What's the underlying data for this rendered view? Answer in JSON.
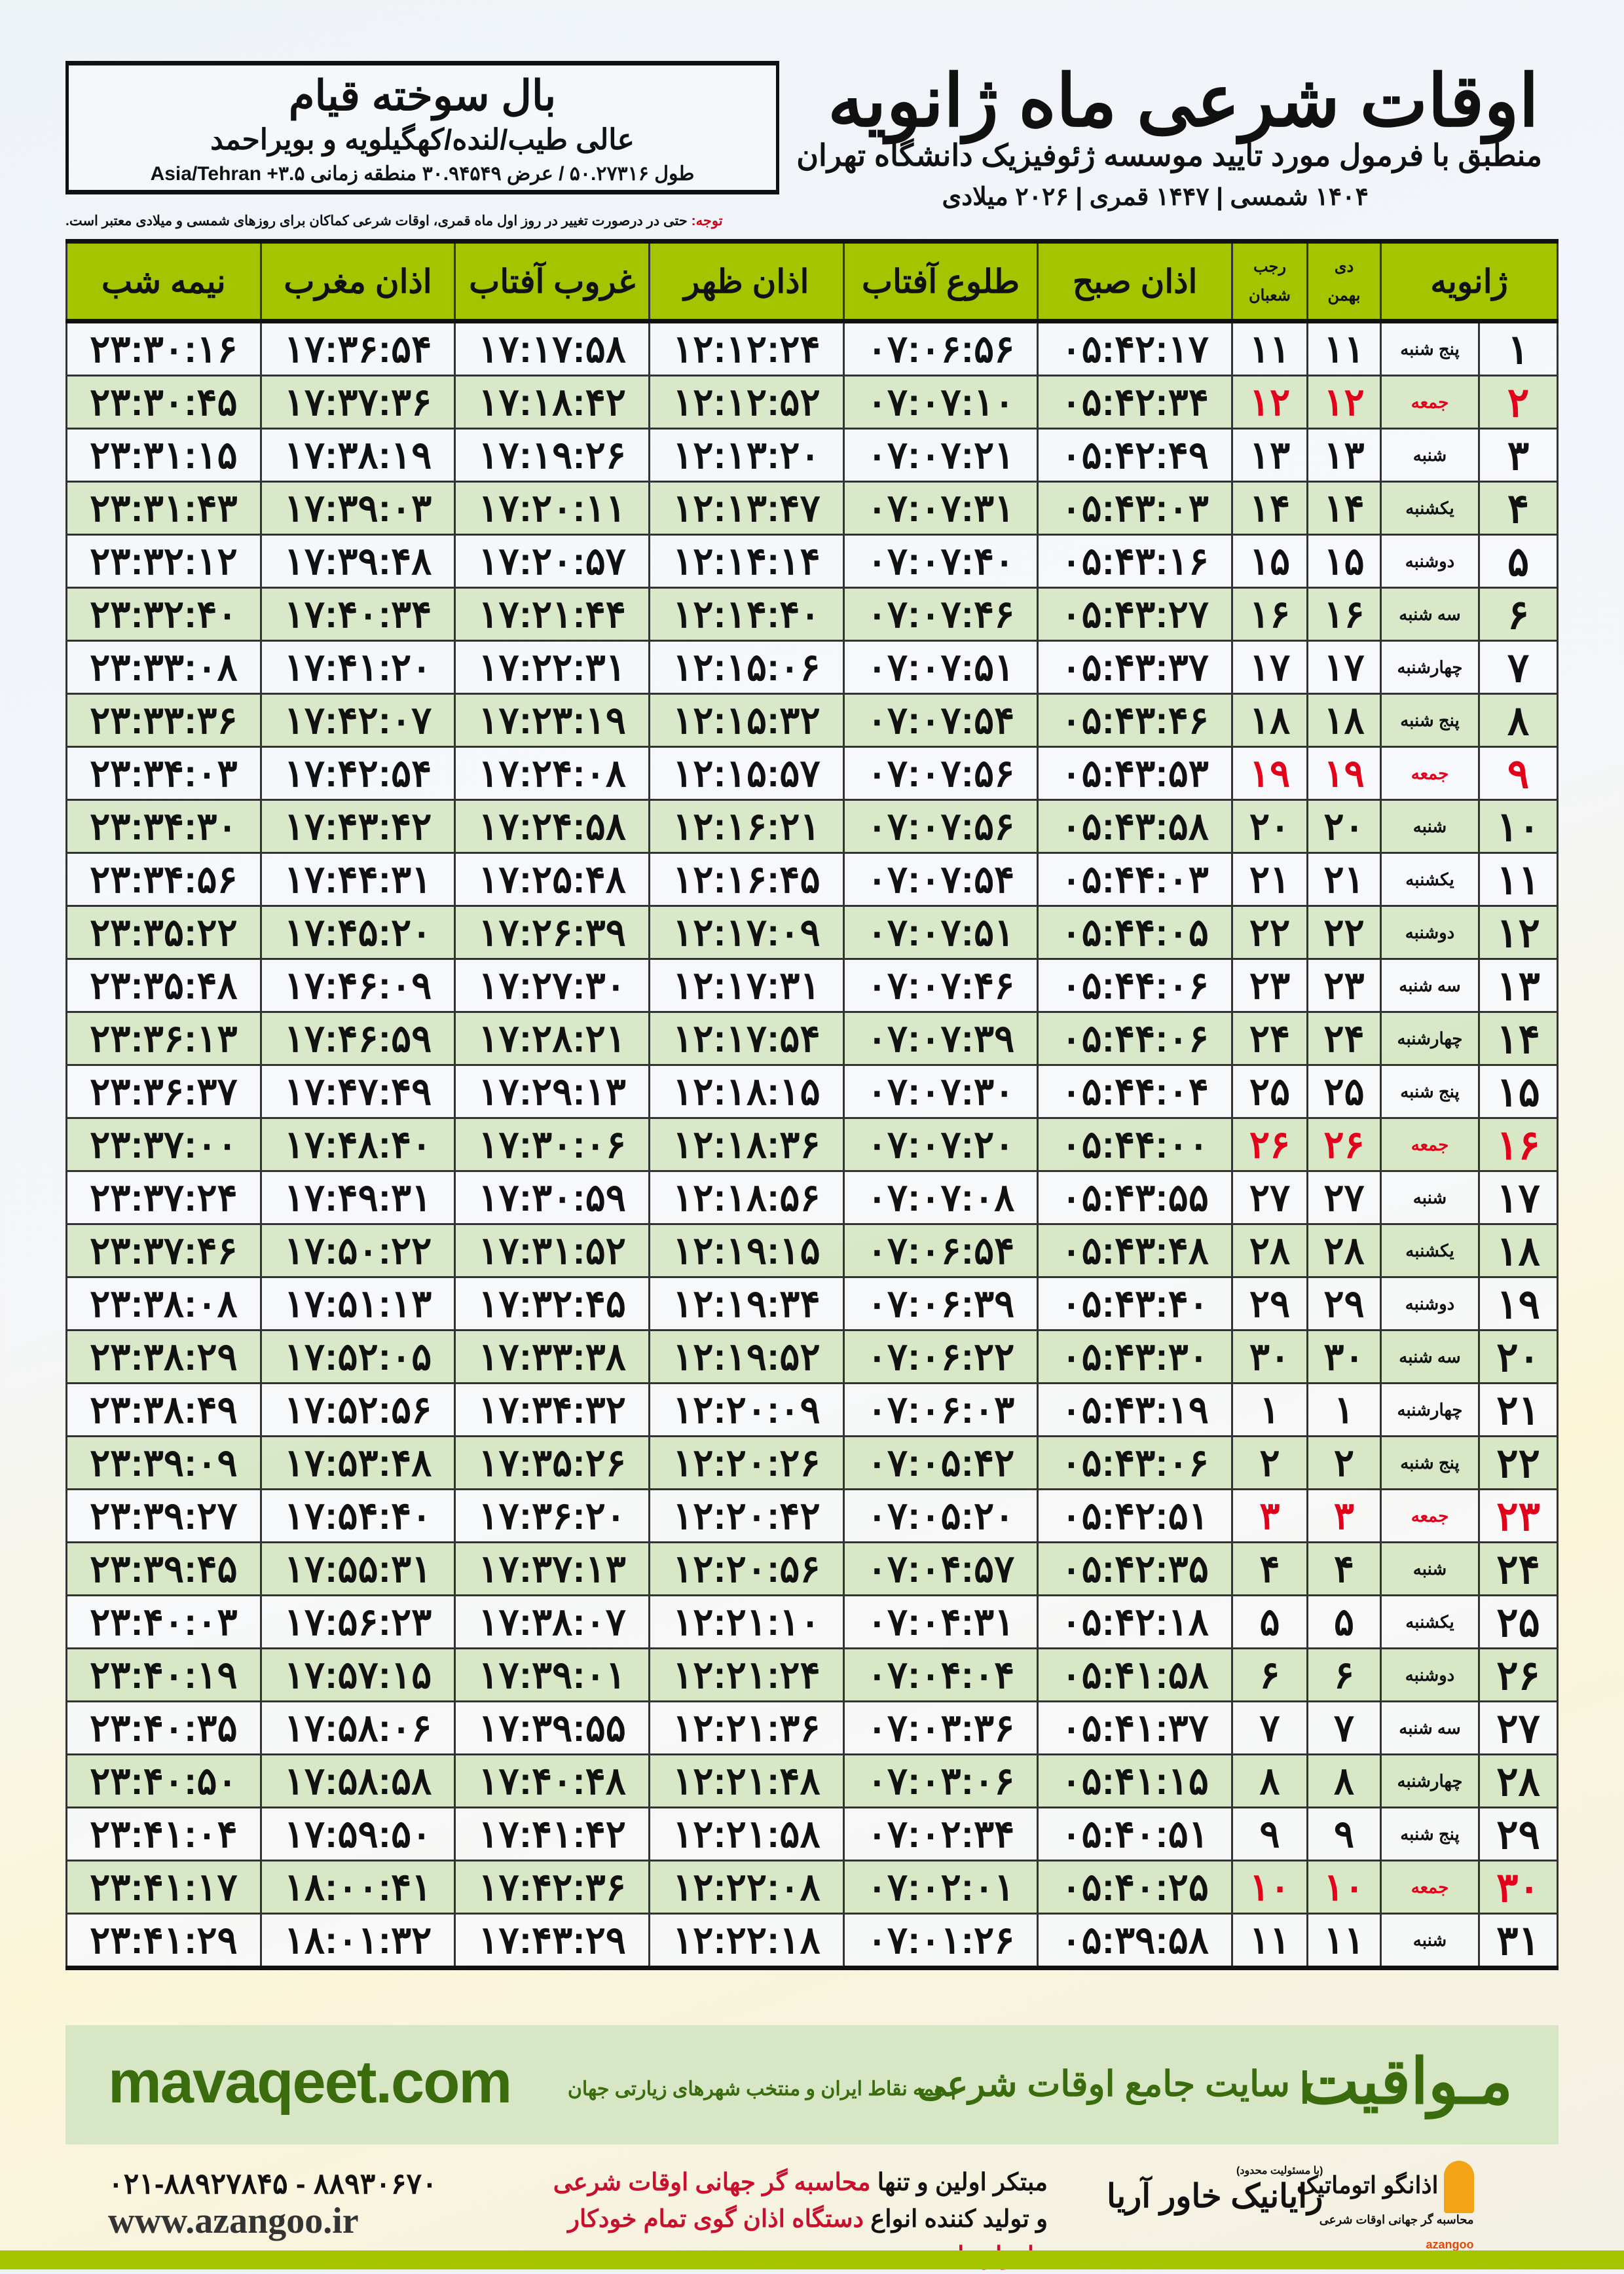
{
  "header": {
    "title": "اوقات شرعی ماه ژانویه",
    "subtitle": "منطبق با فرمول مورد تایید موسسه ژئوفیزیک دانشگاه تهران",
    "years": "۱۴۰۴ شمسی | ۱۴۴۷ قمری | ۲۰۲۶ میلادی"
  },
  "location": {
    "name": "بال سوخته قیام",
    "region": "عالی طیب/لنده/کهگیلویه و بویراحمد",
    "coords": "طول ۵۰.۲۷۳۱۶ / عرض ۳۰.۹۴۵۴۹ منطقه زمانی Asia/Tehran +۳.۵"
  },
  "note": {
    "label": "توجه:",
    "text": " حتی در درصورت تغییر در روز اول ماه قمری، اوقات شرعی کماکان برای روزهای شمسی و میلادی معتبر است."
  },
  "table": {
    "headers": {
      "month": "ژانویه",
      "shamsi_top": "دی",
      "shamsi_bottom": "بهمن",
      "qamari_top": "رجب",
      "qamari_bottom": "شعبان",
      "fajr": "اذان صبح",
      "sunrise": "طلوع آفتاب",
      "dhuhr": "اذان ظهر",
      "sunset": "غروب آفتاب",
      "maghrib": "اذان مغرب",
      "midnight": "نیمه شب"
    },
    "rows": [
      [
        "۱",
        "پنج شنبه",
        "۱۱",
        "۱۱",
        "۰۵:۴۲:۱۷",
        "۰۷:۰۶:۵۶",
        "۱۲:۱۲:۲۴",
        "۱۷:۱۷:۵۸",
        "۱۷:۳۶:۵۴",
        "۲۳:۳۰:۱۶"
      ],
      [
        "۲",
        "جمعه",
        "۱۲",
        "۱۲",
        "۰۵:۴۲:۳۴",
        "۰۷:۰۷:۱۰",
        "۱۲:۱۲:۵۲",
        "۱۷:۱۸:۴۲",
        "۱۷:۳۷:۳۶",
        "۲۳:۳۰:۴۵"
      ],
      [
        "۳",
        "شنبه",
        "۱۳",
        "۱۳",
        "۰۵:۴۲:۴۹",
        "۰۷:۰۷:۲۱",
        "۱۲:۱۳:۲۰",
        "۱۷:۱۹:۲۶",
        "۱۷:۳۸:۱۹",
        "۲۳:۳۱:۱۵"
      ],
      [
        "۴",
        "یکشنبه",
        "۱۴",
        "۱۴",
        "۰۵:۴۳:۰۳",
        "۰۷:۰۷:۳۱",
        "۱۲:۱۳:۴۷",
        "۱۷:۲۰:۱۱",
        "۱۷:۳۹:۰۳",
        "۲۳:۳۱:۴۳"
      ],
      [
        "۵",
        "دوشنبه",
        "۱۵",
        "۱۵",
        "۰۵:۴۳:۱۶",
        "۰۷:۰۷:۴۰",
        "۱۲:۱۴:۱۴",
        "۱۷:۲۰:۵۷",
        "۱۷:۳۹:۴۸",
        "۲۳:۳۲:۱۲"
      ],
      [
        "۶",
        "سه شنبه",
        "۱۶",
        "۱۶",
        "۰۵:۴۳:۲۷",
        "۰۷:۰۷:۴۶",
        "۱۲:۱۴:۴۰",
        "۱۷:۲۱:۴۴",
        "۱۷:۴۰:۳۴",
        "۲۳:۳۲:۴۰"
      ],
      [
        "۷",
        "چهارشنبه",
        "۱۷",
        "۱۷",
        "۰۵:۴۳:۳۷",
        "۰۷:۰۷:۵۱",
        "۱۲:۱۵:۰۶",
        "۱۷:۲۲:۳۱",
        "۱۷:۴۱:۲۰",
        "۲۳:۳۳:۰۸"
      ],
      [
        "۸",
        "پنج شنبه",
        "۱۸",
        "۱۸",
        "۰۵:۴۳:۴۶",
        "۰۷:۰۷:۵۴",
        "۱۲:۱۵:۳۲",
        "۱۷:۲۳:۱۹",
        "۱۷:۴۲:۰۷",
        "۲۳:۳۳:۳۶"
      ],
      [
        "۹",
        "جمعه",
        "۱۹",
        "۱۹",
        "۰۵:۴۳:۵۳",
        "۰۷:۰۷:۵۶",
        "۱۲:۱۵:۵۷",
        "۱۷:۲۴:۰۸",
        "۱۷:۴۲:۵۴",
        "۲۳:۳۴:۰۳"
      ],
      [
        "۱۰",
        "شنبه",
        "۲۰",
        "۲۰",
        "۰۵:۴۳:۵۸",
        "۰۷:۰۷:۵۶",
        "۱۲:۱۶:۲۱",
        "۱۷:۲۴:۵۸",
        "۱۷:۴۳:۴۲",
        "۲۳:۳۴:۳۰"
      ],
      [
        "۱۱",
        "یکشنبه",
        "۲۱",
        "۲۱",
        "۰۵:۴۴:۰۳",
        "۰۷:۰۷:۵۴",
        "۱۲:۱۶:۴۵",
        "۱۷:۲۵:۴۸",
        "۱۷:۴۴:۳۱",
        "۲۳:۳۴:۵۶"
      ],
      [
        "۱۲",
        "دوشنبه",
        "۲۲",
        "۲۲",
        "۰۵:۴۴:۰۵",
        "۰۷:۰۷:۵۱",
        "۱۲:۱۷:۰۹",
        "۱۷:۲۶:۳۹",
        "۱۷:۴۵:۲۰",
        "۲۳:۳۵:۲۲"
      ],
      [
        "۱۳",
        "سه شنبه",
        "۲۳",
        "۲۳",
        "۰۵:۴۴:۰۶",
        "۰۷:۰۷:۴۶",
        "۱۲:۱۷:۳۱",
        "۱۷:۲۷:۳۰",
        "۱۷:۴۶:۰۹",
        "۲۳:۳۵:۴۸"
      ],
      [
        "۱۴",
        "چهارشنبه",
        "۲۴",
        "۲۴",
        "۰۵:۴۴:۰۶",
        "۰۷:۰۷:۳۹",
        "۱۲:۱۷:۵۴",
        "۱۷:۲۸:۲۱",
        "۱۷:۴۶:۵۹",
        "۲۳:۳۶:۱۳"
      ],
      [
        "۱۵",
        "پنج شنبه",
        "۲۵",
        "۲۵",
        "۰۵:۴۴:۰۴",
        "۰۷:۰۷:۳۰",
        "۱۲:۱۸:۱۵",
        "۱۷:۲۹:۱۳",
        "۱۷:۴۷:۴۹",
        "۲۳:۳۶:۳۷"
      ],
      [
        "۱۶",
        "جمعه",
        "۲۶",
        "۲۶",
        "۰۵:۴۴:۰۰",
        "۰۷:۰۷:۲۰",
        "۱۲:۱۸:۳۶",
        "۱۷:۳۰:۰۶",
        "۱۷:۴۸:۴۰",
        "۲۳:۳۷:۰۰"
      ],
      [
        "۱۷",
        "شنبه",
        "۲۷",
        "۲۷",
        "۰۵:۴۳:۵۵",
        "۰۷:۰۷:۰۸",
        "۱۲:۱۸:۵۶",
        "۱۷:۳۰:۵۹",
        "۱۷:۴۹:۳۱",
        "۲۳:۳۷:۲۴"
      ],
      [
        "۱۸",
        "یکشنبه",
        "۲۸",
        "۲۸",
        "۰۵:۴۳:۴۸",
        "۰۷:۰۶:۵۴",
        "۱۲:۱۹:۱۵",
        "۱۷:۳۱:۵۲",
        "۱۷:۵۰:۲۲",
        "۲۳:۳۷:۴۶"
      ],
      [
        "۱۹",
        "دوشنبه",
        "۲۹",
        "۲۹",
        "۰۵:۴۳:۴۰",
        "۰۷:۰۶:۳۹",
        "۱۲:۱۹:۳۴",
        "۱۷:۳۲:۴۵",
        "۱۷:۵۱:۱۳",
        "۲۳:۳۸:۰۸"
      ],
      [
        "۲۰",
        "سه شنبه",
        "۳۰",
        "۳۰",
        "۰۵:۴۳:۳۰",
        "۰۷:۰۶:۲۲",
        "۱۲:۱۹:۵۲",
        "۱۷:۳۳:۳۸",
        "۱۷:۵۲:۰۵",
        "۲۳:۳۸:۲۹"
      ],
      [
        "۲۱",
        "چهارشنبه",
        "۱",
        "۱",
        "۰۵:۴۳:۱۹",
        "۰۷:۰۶:۰۳",
        "۱۲:۲۰:۰۹",
        "۱۷:۳۴:۳۲",
        "۱۷:۵۲:۵۶",
        "۲۳:۳۸:۴۹"
      ],
      [
        "۲۲",
        "پنج شنبه",
        "۲",
        "۲",
        "۰۵:۴۳:۰۶",
        "۰۷:۰۵:۴۲",
        "۱۲:۲۰:۲۶",
        "۱۷:۳۵:۲۶",
        "۱۷:۵۳:۴۸",
        "۲۳:۳۹:۰۹"
      ],
      [
        "۲۳",
        "جمعه",
        "۳",
        "۳",
        "۰۵:۴۲:۵۱",
        "۰۷:۰۵:۲۰",
        "۱۲:۲۰:۴۲",
        "۱۷:۳۶:۲۰",
        "۱۷:۵۴:۴۰",
        "۲۳:۳۹:۲۷"
      ],
      [
        "۲۴",
        "شنبه",
        "۴",
        "۴",
        "۰۵:۴۲:۳۵",
        "۰۷:۰۴:۵۷",
        "۱۲:۲۰:۵۶",
        "۱۷:۳۷:۱۳",
        "۱۷:۵۵:۳۱",
        "۲۳:۳۹:۴۵"
      ],
      [
        "۲۵",
        "یکشنبه",
        "۵",
        "۵",
        "۰۵:۴۲:۱۸",
        "۰۷:۰۴:۳۱",
        "۱۲:۲۱:۱۰",
        "۱۷:۳۸:۰۷",
        "۱۷:۵۶:۲۳",
        "۲۳:۴۰:۰۳"
      ],
      [
        "۲۶",
        "دوشنبه",
        "۶",
        "۶",
        "۰۵:۴۱:۵۸",
        "۰۷:۰۴:۰۴",
        "۱۲:۲۱:۲۴",
        "۱۷:۳۹:۰۱",
        "۱۷:۵۷:۱۵",
        "۲۳:۴۰:۱۹"
      ],
      [
        "۲۷",
        "سه شنبه",
        "۷",
        "۷",
        "۰۵:۴۱:۳۷",
        "۰۷:۰۳:۳۶",
        "۱۲:۲۱:۳۶",
        "۱۷:۳۹:۵۵",
        "۱۷:۵۸:۰۶",
        "۲۳:۴۰:۳۵"
      ],
      [
        "۲۸",
        "چهارشنبه",
        "۸",
        "۸",
        "۰۵:۴۱:۱۵",
        "۰۷:۰۳:۰۶",
        "۱۲:۲۱:۴۸",
        "۱۷:۴۰:۴۸",
        "۱۷:۵۸:۵۸",
        "۲۳:۴۰:۵۰"
      ],
      [
        "۲۹",
        "پنج شنبه",
        "۹",
        "۹",
        "۰۵:۴۰:۵۱",
        "۰۷:۰۲:۳۴",
        "۱۲:۲۱:۵۸",
        "۱۷:۴۱:۴۲",
        "۱۷:۵۹:۵۰",
        "۲۳:۴۱:۰۴"
      ],
      [
        "۳۰",
        "جمعه",
        "۱۰",
        "۱۰",
        "۰۵:۴۰:۲۵",
        "۰۷:۰۲:۰۱",
        "۱۲:۲۲:۰۸",
        "۱۷:۴۲:۳۶",
        "۱۸:۰۰:۴۱",
        "۲۳:۴۱:۱۷"
      ],
      [
        "۳۱",
        "شنبه",
        "۱۱",
        "۱۱",
        "۰۵:۳۹:۵۸",
        "۰۷:۰۱:۲۶",
        "۱۲:۲۲:۱۸",
        "۱۷:۴۳:۲۹",
        "۱۸:۰۱:۳۲",
        "۲۳:۴۱:۲۹"
      ]
    ],
    "holiday_weekday": "جمعه",
    "holiday_color": "#e3001b"
  },
  "promo": {
    "url": "mavaqeet.com",
    "brand": "مـواقیت",
    "tagline": "| سایت جامع اوقات شرعی",
    "tagline_sub": "| همه نقاط ایران و منتخب شهرهای زیارتی جهان"
  },
  "footer": {
    "phone": "۰۲۱-۸۸۹۲۷۸۴۵ - ۸۸۹۳۰۶۷۰",
    "website": "www.azangoo.ir",
    "claim_1a": "مبتکر اولین و تنها ",
    "claim_1b": "محاسبه گر جهانی اوقات شرعی",
    "claim_2a": "و تولید کننده انواع ",
    "claim_2b": "دستگاه اذان گوی تمام خودکار ماهواره ای",
    "logo_rayanik": "رایانیک خاور آریا",
    "logo_rayanik_note": "(با مسئولیت محدود)",
    "logo_azangoo": "اذانگو اتوماتیک",
    "logo_azangoo_sub": "محاسبه گر جهانی اوقات شرعی",
    "logo_azangoo_latin": "azangoo"
  },
  "colors": {
    "header_green": "#a5c400",
    "row_alt": "#d6e7c5",
    "brand_green": "#3a6b0c",
    "accent_red": "#c8102e"
  }
}
